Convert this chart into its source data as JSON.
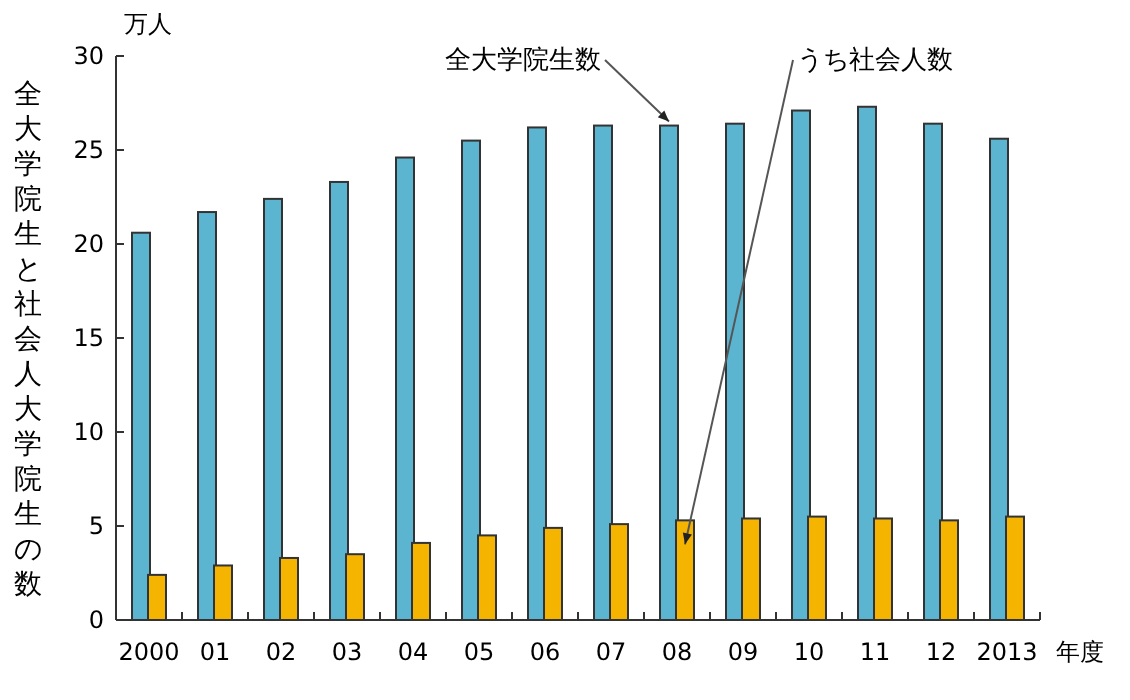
{
  "chart_data": {
    "type": "bar",
    "ylabel": "全大学院生と社会人大学院生の数",
    "xlabel": "年度",
    "categories": [
      "2000",
      "01",
      "02",
      "03",
      "04",
      "05",
      "06",
      "07",
      "08",
      "09",
      "10",
      "11",
      "12",
      "2013"
    ],
    "series": [
      {
        "name": "全大学院生数",
        "color": "#5bb5d0",
        "values": [
          20.6,
          21.7,
          22.4,
          23.3,
          24.6,
          25.5,
          26.2,
          26.3,
          26.3,
          26.4,
          27.1,
          27.3,
          26.4,
          25.6
        ]
      },
      {
        "name": "うち社会人数",
        "color": "#f5b400",
        "values": [
          2.4,
          2.9,
          3.3,
          3.5,
          4.1,
          4.5,
          4.9,
          5.1,
          5.3,
          5.4,
          5.5,
          5.4,
          5.3,
          5.5
        ]
      }
    ],
    "ylim": [
      0,
      30
    ],
    "yticks": [
      0,
      5,
      10,
      15,
      20,
      25,
      30
    ],
    "grid": false,
    "annotations": [
      "万人"
    ]
  }
}
